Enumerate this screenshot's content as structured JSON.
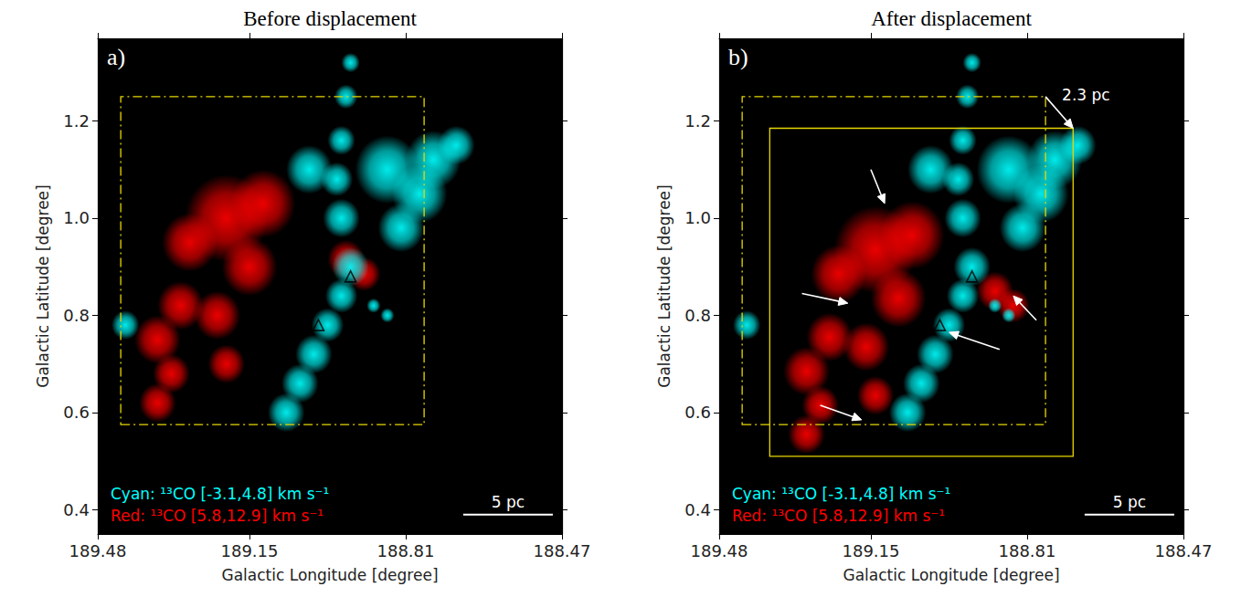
{
  "chart_data": [
    {
      "type": "image",
      "title": "Before displacement",
      "panel_label": "a)",
      "x_label": "Galactic Longitude [degree]",
      "y_label": "Galactic Latitude [degree]",
      "xlim": [
        189.48,
        188.47
      ],
      "xticks": [
        189.48,
        189.15,
        188.81,
        188.47
      ],
      "ylim": [
        0.35,
        1.37
      ],
      "yticks": [
        0.4,
        0.6,
        0.8,
        {
          "value": 1,
          "label": "1.0"
        },
        1.2
      ],
      "series": [
        {
          "name": "Red: ¹³CO [5.8,12.9] km s⁻¹",
          "color": "#ff0000",
          "blobs": [
            [
              189.2,
              1.0,
              0.09
            ],
            [
              189.12,
              1.03,
              0.07
            ],
            [
              189.28,
              0.95,
              0.06
            ],
            [
              189.15,
              0.9,
              0.06
            ],
            [
              189.3,
              0.82,
              0.05
            ],
            [
              189.35,
              0.75,
              0.05
            ],
            [
              189.32,
              0.68,
              0.04
            ],
            [
              189.35,
              0.62,
              0.04
            ],
            [
              189.22,
              0.8,
              0.05
            ],
            [
              189.2,
              0.7,
              0.04
            ],
            [
              188.94,
              0.915,
              0.04
            ],
            [
              188.9,
              0.885,
              0.035
            ]
          ]
        },
        {
          "name": "Cyan: ¹³CO [-3.1,4.8] km s⁻¹",
          "color": "#00ffff",
          "blobs": [
            [
              189.07,
              0.6,
              0.04
            ],
            [
              189.04,
              0.66,
              0.04
            ],
            [
              189.01,
              0.72,
              0.04
            ],
            [
              188.98,
              0.78,
              0.035
            ],
            [
              188.95,
              0.84,
              0.035
            ],
            [
              188.93,
              0.9,
              0.04
            ],
            [
              188.95,
              1.0,
              0.04
            ],
            [
              188.96,
              1.08,
              0.035
            ],
            [
              188.95,
              1.16,
              0.03
            ],
            [
              188.94,
              1.25,
              0.025
            ],
            [
              188.93,
              1.32,
              0.02
            ],
            [
              188.85,
              1.1,
              0.07
            ],
            [
              188.78,
              1.05,
              0.06
            ],
            [
              188.75,
              1.12,
              0.06
            ],
            [
              188.82,
              0.98,
              0.05
            ],
            [
              189.02,
              1.1,
              0.05
            ],
            [
              188.7,
              1.15,
              0.04
            ],
            [
              189.42,
              0.78,
              0.03
            ],
            [
              188.88,
              0.82,
              0.015
            ],
            [
              188.85,
              0.8,
              0.015
            ]
          ]
        }
      ],
      "boxes": [
        {
          "l": [
            189.43,
            188.77
          ],
          "b": [
            0.575,
            1.25
          ],
          "color": "#e8d800",
          "line_style": "dashdot"
        }
      ],
      "sources": {
        "marker": "triangle",
        "color": "#000000",
        "points": [
          [
            188.93,
            0.88
          ],
          [
            189.0,
            0.78
          ]
        ]
      },
      "scale_bar": {
        "label": "5 pc",
        "l": [
          188.685,
          188.49
        ],
        "b": 0.39
      }
    },
    {
      "type": "image",
      "title": "After displacement",
      "panel_label": "b)",
      "x_label": "Galactic Longitude [degree]",
      "y_label": "Galactic Latitude [degree]",
      "xlim": [
        189.48,
        188.47
      ],
      "xticks": [
        189.48,
        189.15,
        188.81,
        188.47
      ],
      "ylim": [
        0.35,
        1.37
      ],
      "yticks": [
        0.4,
        0.6,
        0.8,
        {
          "value": 1,
          "label": "1.0"
        },
        1.2
      ],
      "series": [
        {
          "name": "Red: ¹³CO [5.8,12.9] km s⁻¹",
          "color": "#ff0000",
          "blobs": [
            [
              189.14,
              0.935,
              0.09
            ],
            [
              189.06,
              0.965,
              0.07
            ],
            [
              189.22,
              0.885,
              0.06
            ],
            [
              189.09,
              0.835,
              0.06
            ],
            [
              189.24,
              0.755,
              0.05
            ],
            [
              189.29,
              0.685,
              0.05
            ],
            [
              189.26,
              0.615,
              0.04
            ],
            [
              189.29,
              0.555,
              0.04
            ],
            [
              189.16,
              0.735,
              0.05
            ],
            [
              189.14,
              0.635,
              0.04
            ],
            [
              188.88,
              0.85,
              0.04
            ],
            [
              188.84,
              0.82,
              0.035
            ]
          ]
        },
        {
          "name": "Cyan: ¹³CO [-3.1,4.8] km s⁻¹",
          "color": "#00ffff",
          "blobs": [
            [
              189.07,
              0.6,
              0.04
            ],
            [
              189.04,
              0.66,
              0.04
            ],
            [
              189.01,
              0.72,
              0.04
            ],
            [
              188.98,
              0.78,
              0.035
            ],
            [
              188.95,
              0.84,
              0.035
            ],
            [
              188.93,
              0.9,
              0.04
            ],
            [
              188.95,
              1.0,
              0.04
            ],
            [
              188.96,
              1.08,
              0.035
            ],
            [
              188.95,
              1.16,
              0.03
            ],
            [
              188.94,
              1.25,
              0.025
            ],
            [
              188.93,
              1.32,
              0.02
            ],
            [
              188.85,
              1.1,
              0.07
            ],
            [
              188.78,
              1.05,
              0.06
            ],
            [
              188.75,
              1.12,
              0.06
            ],
            [
              188.82,
              0.98,
              0.05
            ],
            [
              189.02,
              1.1,
              0.05
            ],
            [
              188.7,
              1.15,
              0.04
            ],
            [
              189.42,
              0.78,
              0.03
            ],
            [
              188.88,
              0.82,
              0.015
            ],
            [
              188.85,
              0.8,
              0.015
            ]
          ]
        }
      ],
      "boxes": [
        {
          "l": [
            189.43,
            188.77
          ],
          "b": [
            0.575,
            1.25
          ],
          "color": "#e8d800",
          "line_style": "dashdot"
        },
        {
          "l": [
            189.37,
            188.71
          ],
          "b": [
            0.51,
            1.185
          ],
          "color": "#e8d800",
          "line_style": "solid"
        }
      ],
      "sources": {
        "marker": "triangle",
        "color": "#000000",
        "points": [
          [
            188.93,
            0.88
          ],
          [
            189.0,
            0.78
          ]
        ]
      },
      "arrows": [
        [
          189.15,
          1.1,
          189.12,
          1.03
        ],
        [
          189.3,
          0.845,
          189.2,
          0.825
        ],
        [
          189.26,
          0.615,
          189.17,
          0.585
        ],
        [
          188.87,
          0.73,
          188.98,
          0.765
        ],
        [
          188.79,
          0.79,
          188.84,
          0.84
        ]
      ],
      "displacement": {
        "label": "2.3 pc",
        "from": [
          188.77,
          1.25
        ],
        "to": [
          188.71,
          1.185
        ]
      },
      "scale_bar": {
        "label": "5 pc",
        "l": [
          188.685,
          188.49
        ],
        "b": 0.39
      }
    }
  ]
}
